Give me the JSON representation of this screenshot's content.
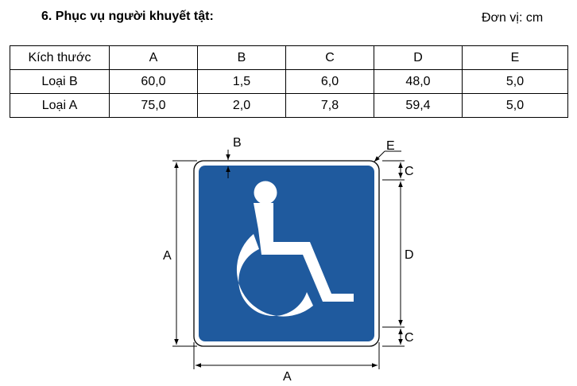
{
  "heading": "6. Phục vụ người khuyết tật:",
  "unit": "Đơn vị: cm",
  "table": {
    "header": [
      "Kích thước",
      "A",
      "B",
      "C",
      "D",
      "E"
    ],
    "rows": [
      [
        "Loại B",
        "60,0",
        "1,5",
        "6,0",
        "48,0",
        "5,0"
      ],
      [
        "Loại A",
        "75,0",
        "2,0",
        "7,8",
        "59,4",
        "5,0"
      ]
    ]
  },
  "diagram": {
    "labels": {
      "A_left": "A",
      "A_bottom": "A",
      "B": "B",
      "C_top": "C",
      "C_bottom": "C",
      "D": "D",
      "E": "E"
    },
    "sign_color": "#1f5a9e",
    "border_color": "#ffffff",
    "icon": "wheelchair-icon"
  }
}
